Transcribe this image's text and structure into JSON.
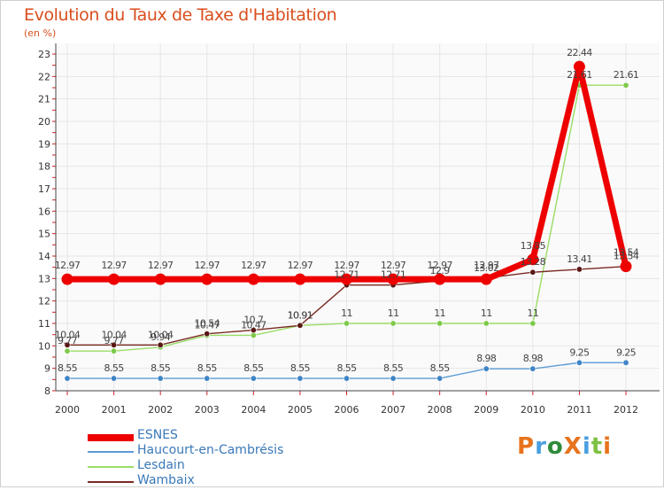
{
  "title": "Evolution du Taux de Taxe d'Habitation",
  "unit": "(en %)",
  "brand": {
    "text": "ProXiti",
    "colors": [
      "#e8731e",
      "#4a9fe0",
      "#2e8b3a",
      "#e8731e",
      "#4a9fe0",
      "#7dc242",
      "#e8731e"
    ]
  },
  "chart_data": {
    "type": "line",
    "title": "Evolution du Taux de Taxe d'Habitation",
    "ylabel": "(en %)",
    "xlabel": "",
    "ylim": [
      8,
      23
    ],
    "yticks": [
      "8",
      "9",
      "10",
      "11",
      "12",
      "13",
      "14",
      "15",
      "16",
      "17",
      "18",
      "19",
      "20",
      "21",
      "22",
      "23"
    ],
    "categories": [
      "2000",
      "2001",
      "2002",
      "2003",
      "2004",
      "2005",
      "2006",
      "2007",
      "2008",
      "2009",
      "2010",
      "2011",
      "2012"
    ],
    "series": [
      {
        "name": "ESNES",
        "color": "#ee0000",
        "emph": true,
        "values": [
          12.97,
          12.97,
          12.97,
          12.97,
          12.97,
          12.97,
          12.97,
          12.97,
          12.97,
          12.97,
          13.85,
          22.44,
          13.54
        ],
        "labels": [
          "12.97",
          "12.97",
          "12.97",
          "12.97",
          "12.97",
          "12.97",
          "12.97",
          "12.97",
          "12.97",
          "12.97",
          "13.85",
          "22.44",
          "13.54"
        ]
      },
      {
        "name": "Haucourt-en-Cambrésis",
        "color": "#5b9bd5",
        "dot": "#3e84c6",
        "values": [
          8.55,
          8.55,
          8.55,
          8.55,
          8.55,
          8.55,
          8.55,
          8.55,
          8.55,
          8.98,
          8.98,
          9.25,
          9.25
        ],
        "labels": [
          "8.55",
          "8.55",
          "8.55",
          "8.55",
          "8.55",
          "8.55",
          "8.55",
          "8.55",
          "8.55",
          "8.98",
          "8.98",
          "9.25",
          "9.25"
        ]
      },
      {
        "name": "Lesdain",
        "color": "#99dd66",
        "dot": "#7ec94a",
        "values": [
          9.77,
          9.77,
          9.94,
          10.47,
          10.47,
          10.91,
          11,
          11,
          11,
          11,
          11,
          21.61,
          21.61
        ],
        "labels": [
          "9.77",
          "9.77",
          "9.94",
          "10.47",
          "10.47",
          "10.91",
          "11",
          "11",
          "11",
          "11",
          "11",
          "21.61",
          "21.61"
        ]
      },
      {
        "name": "Wambaix",
        "color": "#7a2a22",
        "dot": "#5a1814",
        "values": [
          10.04,
          10.04,
          10.04,
          10.54,
          10.7,
          10.91,
          12.71,
          12.71,
          12.9,
          13.02,
          13.28,
          13.41,
          13.54
        ],
        "labels": [
          "10.04",
          "10.04",
          "10.04",
          "10.54",
          "10.7",
          "10.91",
          "12.71",
          "12.71",
          "12.9",
          "13.02",
          "13.28",
          "13.41",
          "13.54"
        ]
      }
    ]
  }
}
